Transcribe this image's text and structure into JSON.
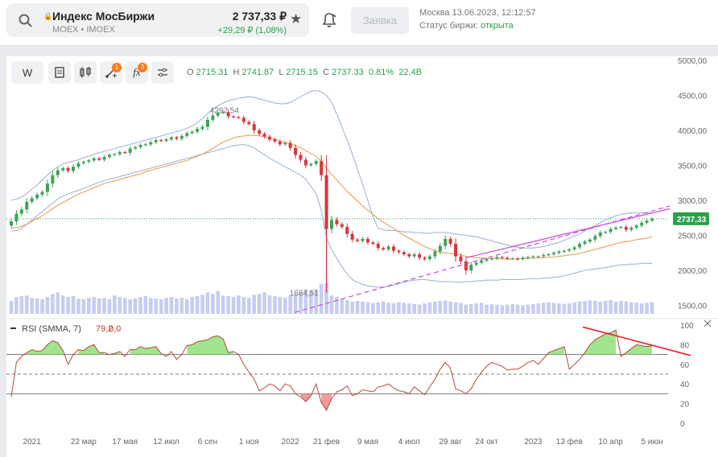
{
  "header": {
    "instrument_name": "Индекс МосБиржи",
    "instrument_sub": "MOEX • IMOEX",
    "price": "2 737,33 ₽",
    "change": "+29,29 ₽ (1,08%)",
    "order_button": "Заявка",
    "market_time": "Москва 13.06.2023, 12:12:57",
    "status_label": "Статус биржи: ",
    "status_value": "открыта"
  },
  "toolbar": {
    "interval_label": "W",
    "drawings_badge": "1",
    "indicators_badge": "3",
    "ohlc": {
      "o_label": "O",
      "o_value": "2715.31",
      "h_label": "H",
      "h_value": "2741.87",
      "l_label": "L",
      "l_value": "2715.15",
      "c_label": "C",
      "c_value": "2737.33",
      "change_pct": "0.81%",
      "volume": "22,4B"
    }
  },
  "chart_data": {
    "type": "candlestick",
    "price_axis_labels": [
      "5000,00",
      "4500,00",
      "4000,00",
      "3500,00",
      "3000,00",
      "2500,00",
      "2000,00",
      "1500,00"
    ],
    "price_ticks": [
      5000,
      4500,
      4000,
      3500,
      3000,
      2500,
      2000,
      1500
    ],
    "price_range": [
      1380,
      5080
    ],
    "current_price_label": "2737,33",
    "current_price": 2737.33,
    "annotation_high": "4292,54",
    "annotation_low": "1684,51",
    "rsi_label": "RSI (SMMA, 7)",
    "rsi_value": "79,2",
    "rsi_aux": "0,0",
    "rsi_axis_labels": [
      "100",
      "80",
      "60",
      "40",
      "20",
      "0"
    ],
    "rsi_ticks": [
      100,
      80,
      60,
      40,
      20,
      0
    ],
    "rsi_levels": [
      70,
      50,
      30
    ],
    "x_labels": [
      "2021",
      "22 мар",
      "17 мая",
      "12 июл",
      "6 сен",
      "1 ноя",
      "2022",
      "21 фев",
      "9 мая",
      "4 июл",
      "29 авг",
      "24 окт",
      "2023",
      "13 фев",
      "10 апр",
      "5 июн"
    ],
    "x_label_index": [
      4,
      14,
      22,
      30,
      38,
      46,
      54,
      61,
      69,
      77,
      85,
      92,
      101,
      108,
      116,
      124
    ],
    "close": [
      2700,
      2810,
      2870,
      2980,
      3030,
      3080,
      3120,
      3240,
      3360,
      3430,
      3460,
      3420,
      3480,
      3530,
      3550,
      3570,
      3600,
      3580,
      3620,
      3650,
      3660,
      3690,
      3680,
      3740,
      3760,
      3790,
      3800,
      3830,
      3860,
      3850,
      3870,
      3900,
      3880,
      3920,
      3960,
      3980,
      4020,
      4050,
      4150,
      4210,
      4250,
      4260,
      4200,
      4190,
      4180,
      4120,
      4090,
      4000,
      3950,
      3910,
      3870,
      3840,
      3800,
      3820,
      3750,
      3650,
      3580,
      3500,
      3520,
      3560,
      3360,
      2590,
      2720,
      2660,
      2620,
      2520,
      2440,
      2420,
      2450,
      2400,
      2380,
      2320,
      2300,
      2340,
      2280,
      2260,
      2230,
      2200,
      2230,
      2180,
      2160,
      2200,
      2270,
      2350,
      2450,
      2380,
      2200,
      2130,
      2000,
      2080,
      2110,
      2140,
      2160,
      2170,
      2190,
      2180,
      2170,
      2170,
      2160,
      2180,
      2190,
      2200,
      2200,
      2220,
      2230,
      2250,
      2270,
      2280,
      2300,
      2330,
      2380,
      2410,
      2440,
      2490,
      2540,
      2550,
      2590,
      2610,
      2620,
      2580,
      2610,
      2640,
      2680,
      2710,
      2737
    ],
    "volume": [
      42,
      55,
      58,
      60,
      52,
      50,
      48,
      55,
      65,
      70,
      60,
      55,
      58,
      50,
      48,
      52,
      55,
      50,
      52,
      48,
      60,
      55,
      52,
      48,
      50,
      55,
      58,
      52,
      50,
      48,
      52,
      55,
      50,
      52,
      48,
      55,
      58,
      62,
      70,
      65,
      75,
      60,
      58,
      55,
      60,
      55,
      52,
      62,
      65,
      70,
      60,
      58,
      55,
      52,
      60,
      65,
      70,
      80,
      75,
      80,
      98,
      100,
      60,
      55,
      50,
      45,
      40,
      42,
      40,
      38,
      35,
      38,
      40,
      36,
      35,
      38,
      36,
      34,
      32,
      30,
      34,
      38,
      40,
      42,
      44,
      40,
      38,
      36,
      30,
      32,
      34,
      36,
      30,
      32,
      30,
      28,
      30,
      32,
      30,
      28,
      30,
      32,
      34,
      36,
      38,
      36,
      34,
      32,
      34,
      38,
      40,
      42,
      44,
      42,
      40,
      42,
      45,
      40,
      42,
      40,
      38,
      36,
      34,
      36,
      38
    ],
    "rsi": [
      27,
      62,
      68,
      72,
      75,
      73,
      74,
      80,
      84,
      82,
      74,
      60,
      70,
      75,
      74,
      78,
      80,
      72,
      72,
      70,
      71,
      73,
      68,
      75,
      75,
      78,
      76,
      77,
      78,
      71,
      68,
      73,
      65,
      70,
      79,
      80,
      83,
      84,
      85,
      88,
      89,
      86,
      72,
      73,
      70,
      60,
      52,
      45,
      33,
      36,
      40,
      38,
      33,
      40,
      38,
      30,
      27,
      22,
      28,
      40,
      21,
      13,
      25,
      32,
      34,
      38,
      28,
      30,
      34,
      33,
      32,
      37,
      38,
      40,
      36,
      33,
      32,
      30,
      37,
      33,
      29,
      37,
      45,
      55,
      62,
      56,
      35,
      33,
      30,
      35,
      45,
      52,
      58,
      62,
      60,
      58,
      54,
      55,
      55,
      58,
      62,
      64,
      60,
      66,
      72,
      74,
      76,
      78,
      55,
      60,
      65,
      72,
      80,
      85,
      88,
      91,
      92,
      95,
      68,
      72,
      76,
      80,
      79,
      78,
      79
    ],
    "bb_upper": [
      3000,
      3020,
      3050,
      3100,
      3160,
      3220,
      3290,
      3360,
      3430,
      3480,
      3520,
      3540,
      3560,
      3580,
      3610,
      3630,
      3660,
      3680,
      3700,
      3720,
      3740,
      3760,
      3780,
      3800,
      3820,
      3840,
      3860,
      3880,
      3900,
      3920,
      3940,
      3960,
      3980,
      4000,
      4030,
      4060,
      4110,
      4170,
      4240,
      4300,
      4350,
      4390,
      4420,
      4440,
      4460,
      4470,
      4480,
      4470,
      4450,
      4430,
      4410,
      4390,
      4380,
      4380,
      4400,
      4440,
      4480,
      4520,
      4560,
      4570,
      4550,
      4500,
      4400,
      4230,
      4050,
      3860,
      3660,
      3450,
      3230,
      3000,
      2770,
      2600,
      2580,
      2570,
      2570,
      2560,
      2550,
      2550,
      2540,
      2540,
      2530,
      2530,
      2540,
      2540,
      2540,
      2530,
      2520,
      2510,
      2500,
      2490,
      2480,
      2460,
      2440,
      2420,
      2400,
      2380,
      2360,
      2340,
      2330,
      2320,
      2320,
      2320,
      2330,
      2340,
      2360,
      2380,
      2400,
      2430,
      2460,
      2490,
      2520,
      2560,
      2600,
      2640,
      2680,
      2720,
      2750,
      2780,
      2800,
      2810,
      2820,
      2820,
      2820,
      2820,
      2820
    ],
    "bb_lower": [
      2560,
      2570,
      2600,
      2660,
      2720,
      2780,
      2840,
      2900,
      2960,
      3020,
      3060,
      3090,
      3120,
      3140,
      3170,
      3200,
      3230,
      3260,
      3280,
      3300,
      3320,
      3340,
      3360,
      3380,
      3400,
      3420,
      3440,
      3460,
      3480,
      3500,
      3520,
      3540,
      3560,
      3580,
      3600,
      3620,
      3640,
      3660,
      3680,
      3700,
      3720,
      3740,
      3760,
      3780,
      3790,
      3800,
      3780,
      3750,
      3700,
      3650,
      3600,
      3560,
      3520,
      3480,
      3440,
      3400,
      3360,
      3300,
      3200,
      3100,
      2860,
      2460,
      2300,
      2170,
      2050,
      1950,
      1870,
      1830,
      1800,
      1780,
      1770,
      1760,
      1760,
      1770,
      1790,
      1810,
      1830,
      1850,
      1860,
      1870,
      1870,
      1860,
      1850,
      1840,
      1840,
      1840,
      1830,
      1830,
      1840,
      1840,
      1850,
      1850,
      1860,
      1860,
      1860,
      1870,
      1870,
      1870,
      1870,
      1870,
      1880,
      1880,
      1880,
      1890,
      1890,
      1900,
      1910,
      1920,
      1940,
      1960,
      1980,
      2000,
      2010,
      2020,
      2030,
      2040,
      2050,
      2070,
      2080,
      2080,
      2090,
      2090,
      2100,
      2100,
      2100
    ],
    "ma": [
      2600,
      2610,
      2630,
      2660,
      2700,
      2740,
      2780,
      2830,
      2880,
      2930,
      2970,
      3010,
      3050,
      3090,
      3120,
      3150,
      3180,
      3210,
      3240,
      3260,
      3280,
      3300,
      3320,
      3340,
      3360,
      3380,
      3410,
      3430,
      3450,
      3470,
      3490,
      3510,
      3530,
      3550,
      3570,
      3600,
      3630,
      3660,
      3700,
      3740,
      3790,
      3830,
      3860,
      3890,
      3910,
      3920,
      3930,
      3930,
      3920,
      3910,
      3890,
      3870,
      3850,
      3830,
      3810,
      3780,
      3750,
      3710,
      3670,
      3630,
      3560,
      3460,
      3370,
      3290,
      3210,
      3130,
      3060,
      2990,
      2920,
      2860,
      2800,
      2740,
      2690,
      2640,
      2600,
      2550,
      2500,
      2460,
      2420,
      2380,
      2340,
      2310,
      2280,
      2260,
      2250,
      2240,
      2230,
      2220,
      2200,
      2190,
      2180,
      2180,
      2170,
      2170,
      2170,
      2160,
      2160,
      2160,
      2160,
      2170,
      2170,
      2170,
      2180,
      2180,
      2190,
      2190,
      2200,
      2210,
      2220,
      2230,
      2240,
      2260,
      2280,
      2300,
      2320,
      2340,
      2360,
      2380,
      2400,
      2410,
      2420,
      2440,
      2450,
      2460,
      2480
    ],
    "colors": {
      "up": "#3fa35a",
      "down": "#d9353a",
      "bollinger": "#9fb6d4",
      "moving_average": "#e8a05d",
      "rsi_line": "#b5473c",
      "rsi_fill_high": "#8fe07a",
      "rsi_fill_low": "#f08a8a",
      "volume": "#c7cdf0",
      "trendline": "#c23ee0",
      "rsi_trendline": "#e8252b",
      "price_label": "#2aa24a"
    }
  }
}
